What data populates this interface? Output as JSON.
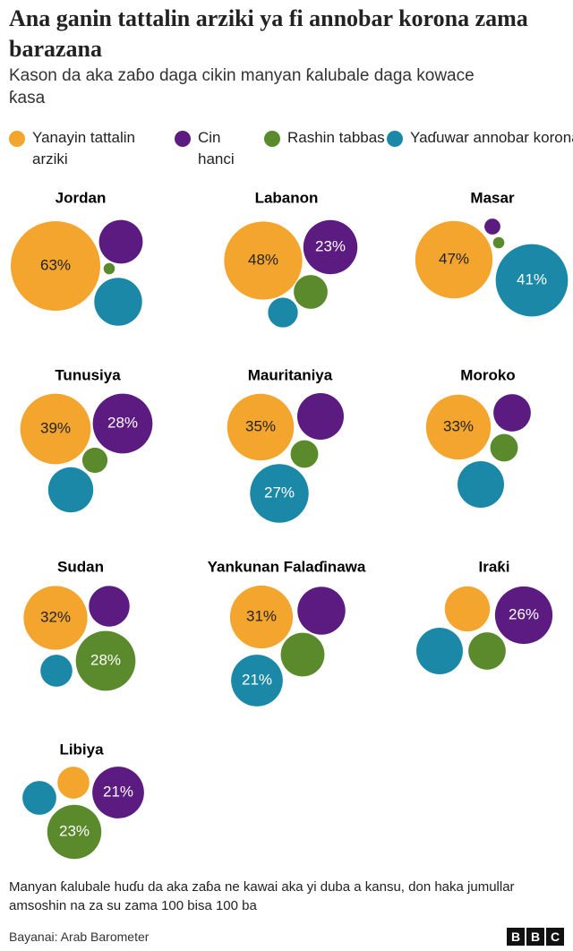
{
  "chart_data": {
    "type": "bubble",
    "title": "Ana ganin tattalin arziki ya fi annobar korona zama barazana",
    "subtitle": "Kason da aka zaɓo daga cikin manyan ƙalubale daga kowace ƙasa",
    "categories": [
      "Jordan",
      "Labanon",
      "Masar",
      "Tunusiya",
      "Mauritaniya",
      "Moroko",
      "Sudan",
      "Yankunan Falaɗinawa",
      "Iraƙi",
      "Libiya"
    ],
    "series": [
      {
        "name": "Yanayin tattalin arziki",
        "color": "#f3a52e",
        "values": [
          63,
          48,
          47,
          39,
          35,
          33,
          32,
          31,
          16,
          8
        ],
        "value_labels": [
          "63%",
          "48%",
          "47%",
          "39%",
          "35%",
          "33%",
          "32%",
          "31%",
          null,
          null
        ]
      },
      {
        "name": "Cin hanci",
        "color": "#5b1b80",
        "values": [
          15,
          23,
          2,
          28,
          17,
          11,
          13,
          18,
          26,
          21
        ],
        "value_labels": [
          null,
          "23%",
          null,
          "28%",
          null,
          null,
          null,
          null,
          "26%",
          "21%"
        ]
      },
      {
        "name": "Rashin tabbas",
        "color": "#5a8a2c",
        "values": [
          1,
          9,
          1,
          5,
          6,
          6,
          28,
          15,
          11,
          23
        ],
        "value_labels": [
          null,
          null,
          null,
          null,
          null,
          null,
          "28%",
          null,
          null,
          "23%"
        ]
      },
      {
        "name": "Yaɗuwar annobar korona",
        "color": "#1b88a8",
        "values": [
          18,
          7,
          41,
          16,
          27,
          17,
          8,
          21,
          17,
          9
        ],
        "value_labels": [
          null,
          null,
          "41%",
          null,
          "27%",
          null,
          null,
          "21%",
          null,
          null
        ]
      }
    ],
    "note": "Manyan ƙalubale huɗu da aka zaɓa ne kawai aka yi duba a kansu, don haka jumullar amsoshin na za su zama 100 bisa 100 ba",
    "source": "Bayanai: Arab Barometer",
    "logo": [
      "B",
      "B",
      "C"
    ]
  }
}
